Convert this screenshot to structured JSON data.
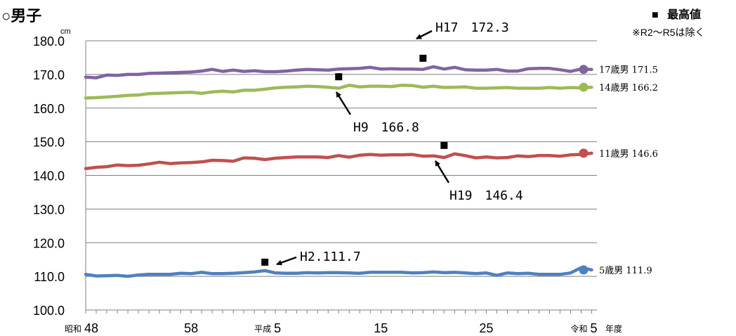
{
  "chart_data": {
    "type": "line",
    "title": "○男子",
    "y_unit": "cm",
    "ylim": [
      100,
      180
    ],
    "y_ticks": [
      "100.0",
      "110.0",
      "120.0",
      "130.0",
      "140.0",
      "150.0",
      "160.0",
      "170.0",
      "180.0"
    ],
    "x_tick_labels": [
      {
        "index": 0,
        "era": "昭和",
        "label": "48"
      },
      {
        "index": 10,
        "era": "",
        "label": "58"
      },
      {
        "index": 18,
        "era": "平成",
        "label": "5"
      },
      {
        "index": 28,
        "era": "",
        "label": "15"
      },
      {
        "index": 38,
        "era": "",
        "label": "25"
      },
      {
        "index": 48,
        "era": "令和",
        "label": "5"
      }
    ],
    "x_axis_suffix": "年度",
    "grid": true,
    "legend_note": {
      "marker": "■",
      "label": "最高値",
      "note": "※R2～R5は除く"
    },
    "series": [
      {
        "name": "17歳男",
        "end_value": "171.5",
        "color": "#8064A2",
        "values": [
          169.2,
          169.0,
          169.8,
          169.7,
          170.0,
          170.0,
          170.3,
          170.4,
          170.5,
          170.6,
          170.7,
          171.0,
          171.5,
          170.9,
          171.3,
          170.9,
          171.1,
          170.8,
          170.8,
          171.0,
          171.3,
          171.5,
          171.4,
          171.3,
          171.6,
          171.7,
          171.8,
          172.1,
          171.6,
          171.7,
          171.6,
          171.6,
          171.5,
          172.3,
          171.6,
          172.1,
          171.4,
          171.3,
          171.3,
          171.5,
          171.0,
          171.0,
          171.7,
          171.8,
          171.8,
          171.4,
          170.9,
          171.6,
          171.5
        ]
      },
      {
        "name": "14歳男",
        "end_value": "166.2",
        "color": "#9BBB59",
        "values": [
          163.0,
          163.1,
          163.3,
          163.5,
          163.8,
          163.9,
          164.3,
          164.4,
          164.5,
          164.6,
          164.7,
          164.4,
          164.8,
          165.0,
          164.8,
          165.3,
          165.3,
          165.6,
          166.0,
          166.2,
          166.3,
          166.5,
          166.4,
          166.2,
          165.9,
          166.8,
          166.3,
          166.5,
          166.5,
          166.4,
          166.8,
          166.7,
          166.2,
          166.5,
          166.1,
          166.2,
          166.3,
          165.9,
          165.9,
          166.0,
          166.1,
          165.9,
          165.9,
          165.9,
          166.1,
          165.9,
          166.1,
          166.0,
          166.2
        ]
      },
      {
        "name": "11歳男",
        "end_value": "146.6",
        "color": "#C0504D",
        "values": [
          142.0,
          142.4,
          142.6,
          143.1,
          142.9,
          143.0,
          143.4,
          143.9,
          143.5,
          143.7,
          143.8,
          144.0,
          144.5,
          144.4,
          144.2,
          145.2,
          145.1,
          144.7,
          145.1,
          145.3,
          145.5,
          145.5,
          145.5,
          145.3,
          145.9,
          145.4,
          146.0,
          146.2,
          146.0,
          146.1,
          146.1,
          146.2,
          145.7,
          145.8,
          145.3,
          146.4,
          145.9,
          145.2,
          145.5,
          145.2,
          145.3,
          145.8,
          145.6,
          145.9,
          145.9,
          145.7,
          146.1,
          146.2,
          146.6
        ]
      },
      {
        "name": "5歳男",
        "end_value": "111.9",
        "color": "#4F81BD",
        "values": [
          110.6,
          110.1,
          110.2,
          110.3,
          110.0,
          110.4,
          110.6,
          110.6,
          110.6,
          110.9,
          110.8,
          111.2,
          110.8,
          110.8,
          110.9,
          111.1,
          111.3,
          111.7,
          111.0,
          110.9,
          110.9,
          111.1,
          111.0,
          111.1,
          111.1,
          111.0,
          110.9,
          111.2,
          111.2,
          111.2,
          111.2,
          111.0,
          111.1,
          111.3,
          111.1,
          111.2,
          111.0,
          110.8,
          111.0,
          110.3,
          111.0,
          110.8,
          110.9,
          110.6,
          110.6,
          110.6,
          111.0,
          112.6,
          111.9
        ]
      }
    ],
    "annotations": [
      {
        "text": "H17　172.3",
        "index": 32,
        "value": 172.3,
        "series": "17歳男"
      },
      {
        "text": "H9　166.8",
        "index": 24,
        "value": 166.8,
        "series": "14歳男"
      },
      {
        "text": "H19　146.4",
        "index": 34,
        "value": 146.4,
        "series": "11歳男"
      },
      {
        "text": "H2.111.7",
        "index": 17,
        "value": 111.7,
        "series": "5歳男"
      }
    ]
  }
}
